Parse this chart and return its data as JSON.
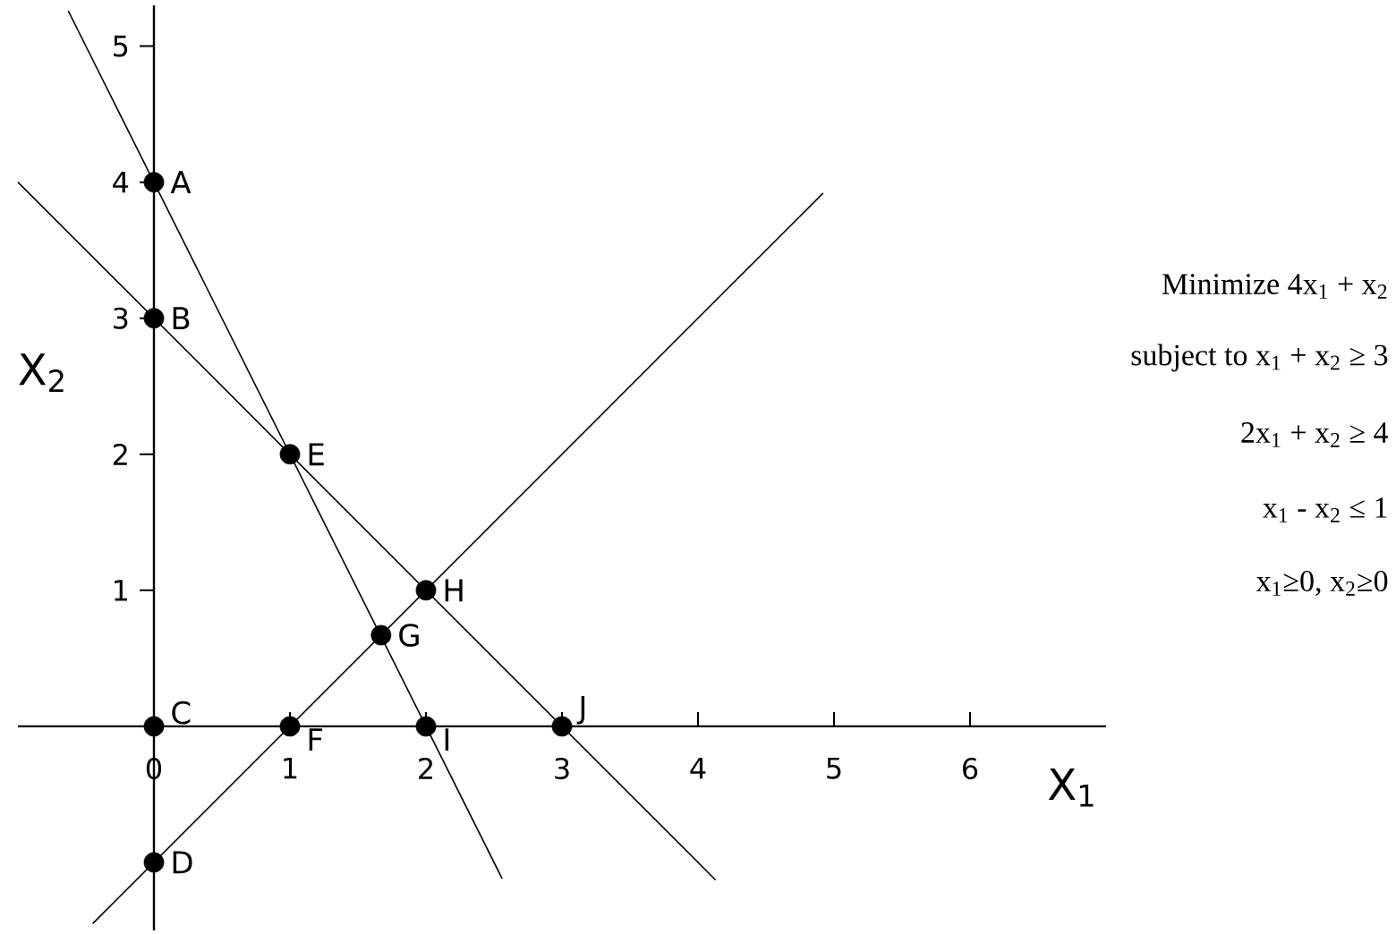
{
  "chart_data": {
    "type": "line",
    "xlabel": "X$_{1}$",
    "ylabel": "X$_{2}$",
    "xlim": [
      -1,
      7
    ],
    "ylim": [
      -1.5,
      5.3
    ],
    "xticks": [
      0,
      1,
      2,
      3,
      4,
      5,
      6
    ],
    "yticks": [
      1,
      2,
      3,
      4,
      5
    ],
    "series": [
      {
        "color": "#000000",
        "x": [
          -1.0,
          4.13
        ],
        "values": [
          4.0,
          -1.13
        ],
        "marker": "none"
      },
      {
        "color": "#000000",
        "x": [
          -0.63,
          2.56
        ],
        "values": [
          5.26,
          -1.12
        ],
        "marker": "none"
      },
      {
        "color": "#000000",
        "x": [
          -0.45,
          4.92
        ],
        "values": [
          -1.45,
          3.92
        ],
        "marker": "none"
      },
      {
        "type": "scatter",
        "color": "#000000",
        "marker": "circle",
        "x": [
          0,
          0,
          0,
          0,
          1,
          1,
          1.67,
          2,
          2,
          3
        ],
        "values": [
          4,
          3,
          0,
          -1,
          2,
          0,
          0.67,
          1,
          0,
          0
        ]
      }
    ],
    "annotations": [
      {
        "text": "A",
        "x": 0,
        "y": 4
      },
      {
        "text": "B",
        "x": 0,
        "y": 3
      },
      {
        "text": "C",
        "x": 0,
        "y": 0
      },
      {
        "text": "D",
        "x": 0,
        "y": -1
      },
      {
        "text": "E",
        "x": 1,
        "y": 2
      },
      {
        "text": "F",
        "x": 1,
        "y": 0
      },
      {
        "text": "G",
        "x": 1.67,
        "y": 0.67
      },
      {
        "text": "H",
        "x": 2,
        "y": 1
      },
      {
        "text": "I",
        "x": 2,
        "y": 0
      },
      {
        "text": "J",
        "x": 3,
        "y": 0
      },
      "Minimize 4x$_{1}$ + x$_{2}$",
      "subject to x$_{1}$ + x$_{2}$ ≥ 3",
      "2x$_{1}$ + x$_{2}$ ≥ 4",
      "x$_{1}$ - x$_{2}$ ≤ 1",
      "x$_{1}$≥0, x$_{2}$≥0"
    ]
  }
}
